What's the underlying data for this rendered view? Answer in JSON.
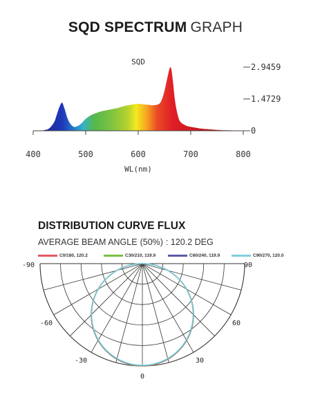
{
  "spectrum": {
    "title_bold": "SQD SPECTRUM",
    "title_light": "GRAPH",
    "chart_data": {
      "type": "area",
      "series_label": "SQD",
      "xlabel": "WL(nm)",
      "xlim": [
        400,
        800
      ],
      "x_ticks": [
        "400",
        "500",
        "600",
        "700",
        "800"
      ],
      "ylim": [
        0,
        2.9459
      ],
      "y_ticks": [
        "2.9459",
        "1.4729",
        "0"
      ],
      "x": [
        420,
        430,
        440,
        445,
        450,
        455,
        460,
        465,
        470,
        475,
        480,
        490,
        500,
        510,
        520,
        530,
        540,
        550,
        560,
        570,
        580,
        590,
        600,
        610,
        620,
        630,
        640,
        645,
        650,
        655,
        660,
        663,
        666,
        670,
        675,
        680,
        690,
        700,
        710,
        720,
        740,
        760,
        780
      ],
      "values": [
        0.03,
        0.1,
        0.4,
        0.75,
        1.1,
        1.3,
        1.0,
        0.6,
        0.35,
        0.22,
        0.18,
        0.3,
        0.55,
        0.72,
        0.82,
        0.9,
        0.95,
        1.0,
        1.05,
        1.12,
        1.18,
        1.22,
        1.25,
        1.22,
        1.2,
        1.18,
        1.25,
        1.45,
        1.85,
        2.4,
        2.9,
        2.85,
        2.3,
        1.4,
        0.75,
        0.42,
        0.25,
        0.18,
        0.14,
        0.1,
        0.06,
        0.03,
        0.02
      ]
    }
  },
  "distribution": {
    "title": "DISTRIBUTION CURVE FLUX",
    "beam_label": "AVERAGE BEAM ANGLE",
    "beam_pct": "(50%)",
    "beam_value": ": 120.2 DEG",
    "chart_data": {
      "type": "line",
      "subtype": "polar",
      "series": [
        {
          "name": "C0/180, 120.2",
          "color": "#e05a5f"
        },
        {
          "name": "C30/210, 119.9",
          "color": "#7ac043"
        },
        {
          "name": "C60/240, 119.9",
          "color": "#5a5aa8"
        },
        {
          "name": "C90/270, 120.0",
          "color": "#7fcfdc"
        }
      ],
      "curve_shape": "lambertian, intensity proportional to cos(angle)",
      "angle_labels": {
        "top_left": "-90",
        "top_right": "90",
        "mid_left": "-60",
        "mid_right": "60",
        "low_left": "-30",
        "low_right": "30",
        "bottom": "0"
      }
    }
  }
}
